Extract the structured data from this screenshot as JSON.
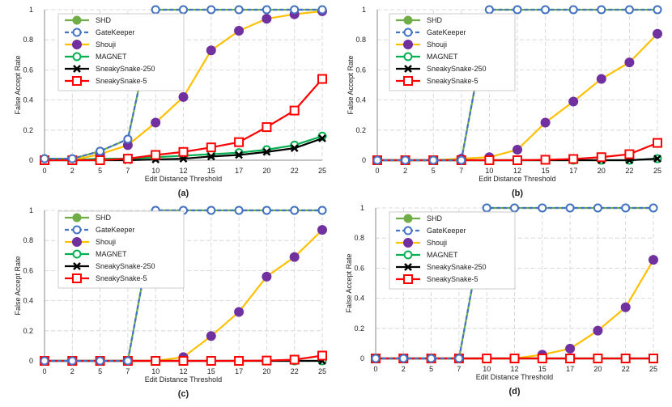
{
  "figure": {
    "legend_labels": [
      "SHD",
      "GateKeeper",
      "Shouji",
      "MAGNET",
      "SneakySnake-250",
      "SneakySnake-5"
    ]
  },
  "chart_data": [
    {
      "type": "line",
      "panel_label": "(a)",
      "xlabel": "Edit Distance Threshold",
      "ylabel": "False Accept Rate",
      "x": [
        0,
        2,
        5,
        7,
        10,
        12,
        15,
        17,
        20,
        22,
        25
      ],
      "ylim": [
        0,
        1
      ],
      "yticks": [
        0,
        0.2,
        0.4,
        0.6,
        0.8,
        1
      ],
      "series": [
        {
          "name": "SHD",
          "color": "#70ad47",
          "values": [
            0.01,
            0.01,
            0.06,
            0.14,
            1,
            1,
            1,
            1,
            1,
            1,
            1
          ]
        },
        {
          "name": "GateKeeper",
          "color": "#4472c4",
          "values": [
            0.01,
            0.01,
            0.06,
            0.14,
            1,
            1,
            1,
            1,
            1,
            1,
            1
          ]
        },
        {
          "name": "Shouji",
          "color": "#ffc000",
          "values": [
            0,
            0,
            0.04,
            0.1,
            0.25,
            0.42,
            0.73,
            0.86,
            0.94,
            0.97,
            0.99
          ]
        },
        {
          "name": "MAGNET",
          "color": "#00b050",
          "values": [
            0.01,
            0,
            0.01,
            0.01,
            0.02,
            0.03,
            0.04,
            0.05,
            0.07,
            0.1,
            0.16
          ]
        },
        {
          "name": "SneakySnake-250",
          "color": "#000000",
          "values": [
            0,
            0,
            0,
            0,
            0.005,
            0.01,
            0.025,
            0.035,
            0.055,
            0.08,
            0.145
          ]
        },
        {
          "name": "SneakySnake-5",
          "color": "#ff0000",
          "values": [
            0,
            0,
            0,
            0.01,
            0.035,
            0.055,
            0.085,
            0.12,
            0.22,
            0.33,
            0.54
          ]
        }
      ]
    },
    {
      "type": "line",
      "panel_label": "(b)",
      "xlabel": "Edit Distance Threshold",
      "ylabel": "False Accept Rate",
      "x": [
        0,
        2,
        5,
        7,
        10,
        12,
        15,
        17,
        20,
        22,
        25
      ],
      "ylim": [
        0,
        1
      ],
      "yticks": [
        0,
        0.2,
        0.4,
        0.6,
        0.8,
        1
      ],
      "series": [
        {
          "name": "SHD",
          "color": "#70ad47",
          "values": [
            0,
            0,
            0,
            0,
            1,
            1,
            1,
            1,
            1,
            1,
            1
          ]
        },
        {
          "name": "GateKeeper",
          "color": "#4472c4",
          "values": [
            0,
            0,
            0,
            0,
            1,
            1,
            1,
            1,
            1,
            1,
            1
          ]
        },
        {
          "name": "Shouji",
          "color": "#ffc000",
          "values": [
            0,
            0,
            0,
            0.01,
            0.02,
            0.07,
            0.25,
            0.39,
            0.54,
            0.65,
            0.84
          ]
        },
        {
          "name": "MAGNET",
          "color": "#00b050",
          "values": [
            0,
            0,
            0,
            0,
            0,
            0,
            0,
            0,
            0,
            0,
            0.01
          ]
        },
        {
          "name": "SneakySnake-250",
          "color": "#000000",
          "values": [
            0,
            0,
            0,
            0,
            0,
            0,
            0,
            0,
            0,
            0,
            0.01
          ]
        },
        {
          "name": "SneakySnake-5",
          "color": "#ff0000",
          "values": [
            0,
            0,
            0,
            0,
            0,
            0,
            0.003,
            0.008,
            0.02,
            0.04,
            0.115
          ]
        }
      ]
    },
    {
      "type": "line",
      "panel_label": "(c)",
      "xlabel": "Edit Distance Threshold",
      "ylabel": "False Accept Rate",
      "x": [
        0,
        2,
        5,
        7,
        10,
        12,
        15,
        17,
        20,
        22,
        25
      ],
      "ylim": [
        0,
        1
      ],
      "yticks": [
        0,
        0.2,
        0.4,
        0.6,
        0.8,
        1
      ],
      "series": [
        {
          "name": "SHD",
          "color": "#70ad47",
          "values": [
            0,
            0,
            0,
            0,
            1,
            1,
            1,
            1,
            1,
            1,
            1
          ]
        },
        {
          "name": "GateKeeper",
          "color": "#4472c4",
          "values": [
            0,
            0,
            0,
            0,
            1,
            1,
            1,
            1,
            1,
            1,
            1
          ]
        },
        {
          "name": "Shouji",
          "color": "#ffc000",
          "values": [
            0,
            0,
            0,
            0,
            0,
            0.025,
            0.165,
            0.325,
            0.56,
            0.69,
            0.87
          ]
        },
        {
          "name": "MAGNET",
          "color": "#00b050",
          "values": [
            0,
            0,
            0,
            0,
            0,
            0,
            0,
            0,
            0,
            0,
            0
          ]
        },
        {
          "name": "SneakySnake-250",
          "color": "#000000",
          "values": [
            0,
            0,
            0,
            0,
            0,
            0,
            0,
            0,
            0,
            0,
            0
          ]
        },
        {
          "name": "SneakySnake-5",
          "color": "#ff0000",
          "values": [
            0,
            0,
            0,
            0,
            0,
            0,
            0,
            0,
            0.002,
            0.008,
            0.035
          ]
        }
      ]
    },
    {
      "type": "line",
      "panel_label": "(d)",
      "xlabel": "Edit Distance Threshold",
      "ylabel": "False Accept Rate",
      "x": [
        0,
        2,
        5,
        7,
        10,
        12,
        15,
        17,
        20,
        22,
        25
      ],
      "ylim": [
        0,
        1
      ],
      "yticks": [
        0,
        0.2,
        0.4,
        0.6,
        0.8,
        1
      ],
      "series": [
        {
          "name": "SHD",
          "color": "#70ad47",
          "values": [
            0,
            0,
            0,
            0,
            1,
            1,
            1,
            1,
            1,
            1,
            1
          ]
        },
        {
          "name": "GateKeeper",
          "color": "#4472c4",
          "values": [
            0,
            0,
            0,
            0,
            1,
            1,
            1,
            1,
            1,
            1,
            1
          ]
        },
        {
          "name": "Shouji",
          "color": "#ffc000",
          "values": [
            0,
            0,
            0,
            0,
            0,
            0,
            0.025,
            0.065,
            0.185,
            0.34,
            0.655
          ]
        },
        {
          "name": "MAGNET",
          "color": "#00b050",
          "values": [
            0,
            0,
            0,
            0,
            0,
            0,
            0,
            0,
            0,
            0,
            0
          ]
        },
        {
          "name": "SneakySnake-250",
          "color": "#000000",
          "values": [
            0,
            0,
            0,
            0,
            0,
            0,
            0,
            0,
            0,
            0,
            0
          ]
        },
        {
          "name": "SneakySnake-5",
          "color": "#ff0000",
          "values": [
            0,
            0,
            0,
            0,
            0,
            0,
            0,
            0,
            0,
            0,
            0
          ]
        }
      ]
    }
  ]
}
